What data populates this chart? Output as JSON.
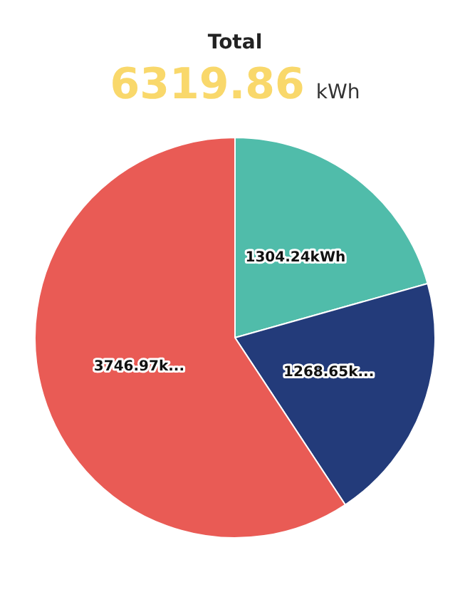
{
  "chart_data": {
    "type": "pie",
    "title": "Total",
    "subtitle": "6319.86",
    "annotations": [
      "kWh"
    ],
    "categories": [
      null,
      null,
      null
    ],
    "values": [
      1304.24,
      1268.65,
      3746.97
    ],
    "colors": [
      "#50bcaa",
      "#233b7a",
      "#e95b55"
    ],
    "value_labels": [
      "1304.24kWh",
      "1268.65k...",
      "3746.97k..."
    ],
    "legend": false
  }
}
